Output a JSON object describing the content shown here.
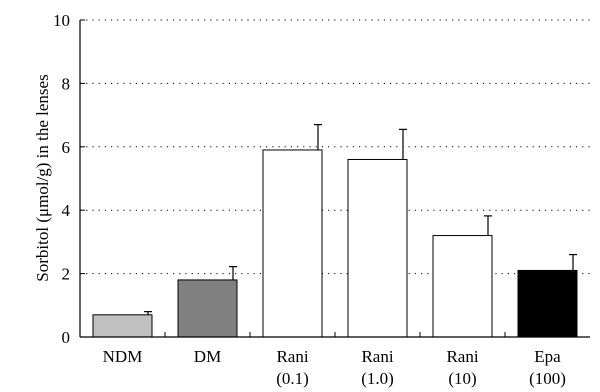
{
  "chart_data": {
    "type": "bar",
    "title": "",
    "xlabel": "",
    "ylabel": "Sorbitol (μmol/g) in the lenses",
    "ylim": [
      0,
      10
    ],
    "yticks": [
      "0",
      "2",
      "4",
      "6",
      "8",
      "10"
    ],
    "grid": "horizontal-dotted",
    "categories": [
      {
        "line1": "NDM",
        "line2": ""
      },
      {
        "line1": "DM",
        "line2": ""
      },
      {
        "line1": "Rani",
        "line2": "(0.1)"
      },
      {
        "line1": "Rani",
        "line2": "(1.0)"
      },
      {
        "line1": "Rani",
        "line2": "(10)"
      },
      {
        "line1": "Epa",
        "line2": "(100)"
      }
    ],
    "values": [
      0.7,
      1.8,
      5.9,
      5.6,
      3.2,
      2.1
    ],
    "errors": [
      0.1,
      0.42,
      0.8,
      0.95,
      0.62,
      0.5
    ],
    "colors": [
      "#c0c0c0",
      "#808080",
      "#ffffff",
      "#ffffff",
      "#ffffff",
      "#000000"
    ]
  }
}
